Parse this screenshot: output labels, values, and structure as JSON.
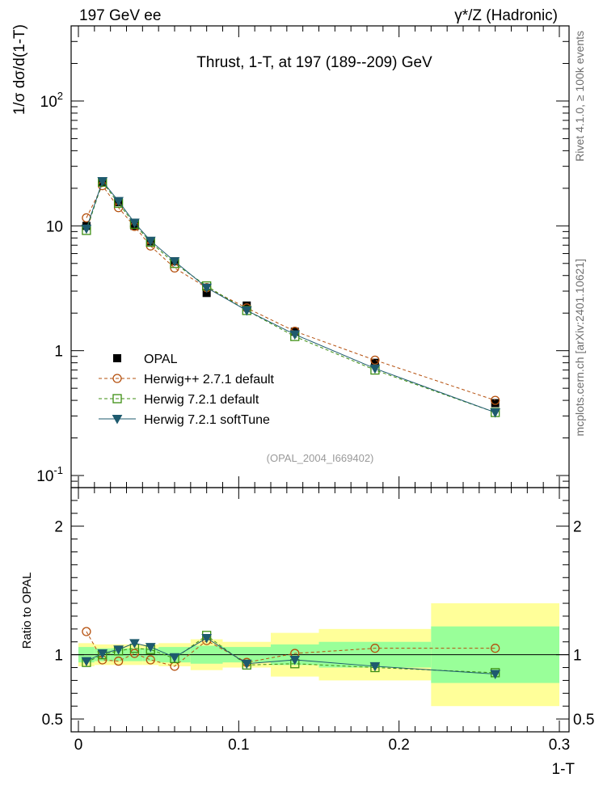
{
  "header": {
    "left": "197 GeV ee",
    "right": "γ*/Z (Hadronic)"
  },
  "side": {
    "rivet": "Rivet 4.1.0, ≥ 100k events",
    "mcplots": "mcplots.cern.ch [arXiv:2401.10621]"
  },
  "chart_data": {
    "type": "scatter",
    "title": "Thrust, 1-T, at 197 (189--209) GeV",
    "watermark": "(OPAL_2004_I669402)",
    "xlabel": "1-T",
    "ylabel": "1/σ  dσ/d(1-T)",
    "ratio_ylabel": "Ratio to OPAL",
    "xlim": [
      0,
      0.3
    ],
    "ylim_main": [
      0.08,
      400
    ],
    "ylim_ratio": [
      0.4,
      2.3
    ],
    "yscale_main": "log",
    "x_ticks": [
      "0",
      "0.1",
      "0.2",
      "0.3"
    ],
    "x_tick_values": [
      0,
      0.1,
      0.2,
      0.3
    ],
    "main_y_ticks": [
      "10",
      "1",
      "10"
    ],
    "main_y_tick_exp": [
      "-1",
      "",
      "2"
    ],
    "ratio_y_ticks": [
      "0.5",
      "1",
      "2"
    ],
    "ratio_y_tick_values": [
      0.5,
      1,
      2
    ],
    "bins": [
      0,
      0.01,
      0.02,
      0.03,
      0.04,
      0.05,
      0.07,
      0.09,
      0.12,
      0.15,
      0.22,
      0.3
    ],
    "bin_edges": [
      [
        0,
        0.01
      ],
      [
        0.01,
        0.02
      ],
      [
        0.02,
        0.03
      ],
      [
        0.03,
        0.04
      ],
      [
        0.04,
        0.05
      ],
      [
        0.05,
        0.07
      ],
      [
        0.07,
        0.09
      ],
      [
        0.09,
        0.12
      ],
      [
        0.12,
        0.15
      ],
      [
        0.15,
        0.22
      ],
      [
        0.22,
        0.3
      ]
    ],
    "x": [
      0.005,
      0.015,
      0.025,
      0.035,
      0.045,
      0.06,
      0.08,
      0.105,
      0.135,
      0.185,
      0.26
    ],
    "data": {
      "name": "OPAL",
      "values": [
        10.0,
        22.5,
        15.5,
        10.0,
        7.5,
        5.2,
        2.9,
        2.3,
        1.42,
        0.8,
        0.38
      ]
    },
    "band_green": [
      0.06,
      0.05,
      0.05,
      0.05,
      0.05,
      0.06,
      0.07,
      0.06,
      0.08,
      0.1,
      0.22
    ],
    "band_yellow": [
      0.09,
      0.08,
      0.08,
      0.08,
      0.08,
      0.09,
      0.12,
      0.1,
      0.17,
      0.2,
      0.4
    ],
    "series": [
      {
        "name": "Herwig++ 2.7.1 default",
        "color": "#b5500e",
        "marker": "circle-open",
        "dash": "4,3",
        "values": [
          11.6,
          21.0,
          14.0,
          9.9,
          6.9,
          4.6,
          3.2,
          2.2,
          1.43,
          0.84,
          0.4
        ],
        "ratio": [
          1.18,
          0.96,
          0.95,
          1.01,
          0.96,
          0.91,
          1.11,
          0.94,
          1.01,
          1.05,
          1.05
        ]
      },
      {
        "name": "Herwig 7.2.1 default",
        "color": "#3d8f12",
        "marker": "square-open",
        "dash": "4,3",
        "values": [
          9.2,
          22.4,
          15.2,
          10.3,
          7.4,
          5.0,
          3.3,
          2.1,
          1.3,
          0.7,
          0.32
        ],
        "ratio": [
          0.94,
          1.0,
          1.03,
          1.05,
          1.04,
          0.97,
          1.15,
          0.92,
          0.93,
          0.9,
          0.86
        ]
      },
      {
        "name": "Herwig 7.2.1 softTune",
        "color": "#1e5a6e",
        "marker": "triangle-down-filled",
        "dash": "",
        "values": [
          9.5,
          22.8,
          15.8,
          10.6,
          7.6,
          5.2,
          3.2,
          2.1,
          1.35,
          0.72,
          0.32
        ],
        "ratio": [
          0.95,
          1.01,
          1.04,
          1.09,
          1.06,
          0.98,
          1.13,
          0.93,
          0.96,
          0.91,
          0.85
        ]
      }
    ],
    "legend_position": "lower-left"
  }
}
